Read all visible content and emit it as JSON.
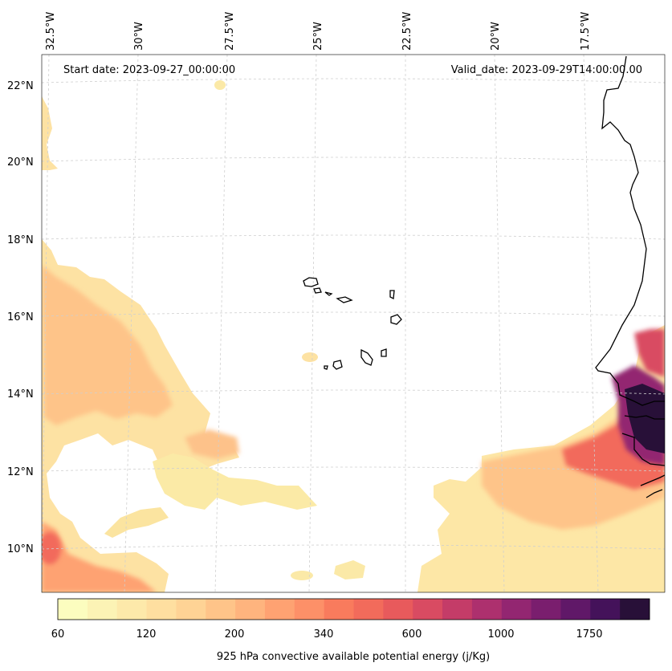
{
  "header": {
    "start_date": "Start date: 2023-09-27_00:00:00",
    "valid_date": "Valid_date: 2023-09-29T14:00:00.00"
  },
  "axes": {
    "lon_labels": [
      "32.5°W",
      "30°W",
      "27.5°W",
      "25°W",
      "22.5°W",
      "20°W",
      "17.5°W"
    ],
    "lat_labels": [
      "22°N",
      "20°N",
      "18°N",
      "16°N",
      "14°N",
      "12°N",
      "10°N"
    ]
  },
  "colorbar": {
    "label": "925 hPa convective available potential energy (j/Kg)",
    "tick_labels": [
      "60",
      "120",
      "200",
      "340",
      "600",
      "1000",
      "1750"
    ],
    "colors": [
      "#fcfdbf",
      "#fcf3b5",
      "#fde9aa",
      "#fedfa0",
      "#fed395",
      "#fec489",
      "#feb47e",
      "#fea272",
      "#fd9068",
      "#f97b5d",
      "#f26b5b",
      "#e85a5c",
      "#d94b62",
      "#c43c68",
      "#ad306e",
      "#932671",
      "#7a1e6e",
      "#601868",
      "#44125a",
      "#281038"
    ]
  },
  "map": {
    "colormap": "magma_r",
    "gridlines": true,
    "coastlines": true
  }
}
